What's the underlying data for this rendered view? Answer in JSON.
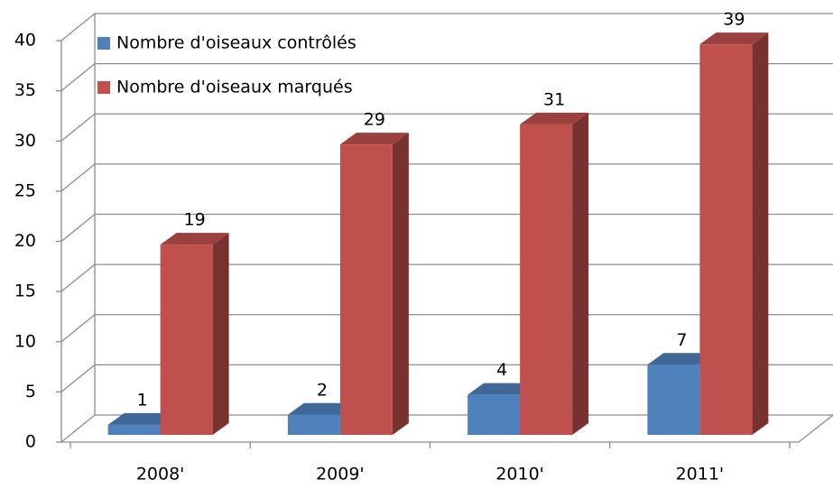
{
  "chart_data": {
    "type": "bar3d",
    "categories": [
      "2008'",
      "2009'",
      "2010'",
      "2011'"
    ],
    "series": [
      {
        "name": "Nombre d'oiseaux contrôlés",
        "color": "#4f81bd",
        "values": [
          1,
          2,
          4,
          7
        ]
      },
      {
        "name": "Nombre d'oiseaux marqués",
        "color": "#c0504d",
        "values": [
          19,
          29,
          31,
          39
        ]
      }
    ],
    "ylim": [
      0,
      40
    ],
    "yticks": [
      0,
      5,
      10,
      15,
      20,
      25,
      30,
      35,
      40
    ],
    "grid": true,
    "legend": "top-left"
  }
}
